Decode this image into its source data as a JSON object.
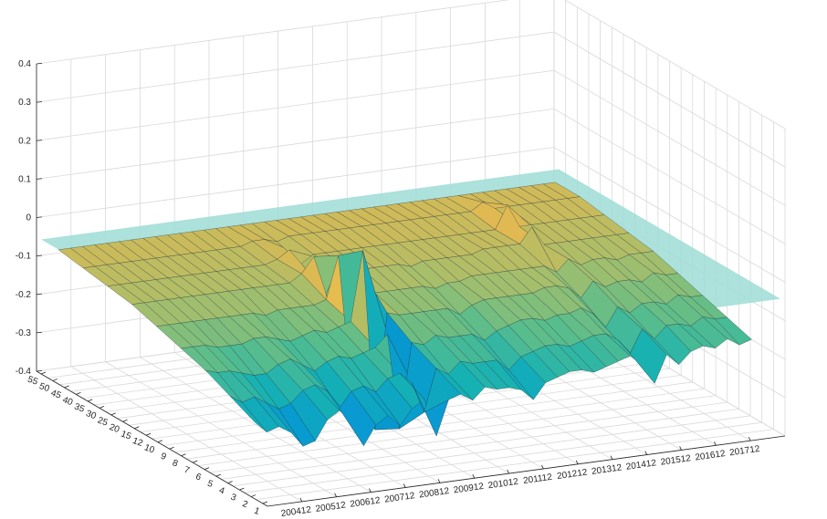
{
  "chart_data": {
    "type": "surface",
    "title": "",
    "xlabel": "",
    "ylabel": "",
    "zlabel": "",
    "zlim": [
      -0.4,
      0.4
    ],
    "z_ticks": [
      "0.4",
      "0.3",
      "0.2",
      "0.1",
      "0",
      "-0.1",
      "-0.2",
      "-0.3",
      "-0.4"
    ],
    "x_ticks": [
      "200412",
      "200512",
      "200612",
      "200712",
      "200812",
      "200912",
      "201012",
      "201112",
      "201212",
      "201312",
      "201412",
      "201512",
      "201612",
      "201712"
    ],
    "y_ticks": [
      "1",
      "2",
      "3",
      "4",
      "5",
      "6",
      "7",
      "8",
      "9",
      "10",
      "12",
      "15",
      "20",
      "25",
      "30",
      "35",
      "40",
      "45",
      "50",
      "55"
    ],
    "grid": true,
    "colormap": "parula",
    "reference_plane": {
      "z": -0.05,
      "color": "#9edcd6"
    },
    "series": [
      {
        "z": [
          -0.22,
          -0.25,
          -0.24,
          -0.26,
          -0.3,
          -0.29,
          -0.24,
          -0.22,
          -0.25,
          -0.32,
          -0.27,
          -0.25,
          -0.28,
          -0.24,
          -0.22,
          -0.32,
          -0.23,
          -0.22,
          -0.24,
          -0.21,
          -0.22,
          -0.22,
          -0.23,
          -0.26,
          -0.22,
          -0.21,
          -0.2,
          -0.2,
          -0.21,
          -0.2,
          -0.19,
          -0.18,
          -0.21,
          -0.26,
          -0.19,
          -0.22,
          -0.19,
          -0.18,
          -0.19,
          -0.17,
          -0.19,
          -0.18
        ]
      },
      {
        "z": [
          -0.19,
          -0.21,
          -0.2,
          -0.22,
          -0.24,
          -0.23,
          -0.2,
          -0.19,
          -0.21,
          -0.26,
          -0.22,
          -0.21,
          -0.23,
          -0.2,
          -0.19,
          -0.22,
          -0.3,
          -0.19,
          -0.21,
          -0.18,
          -0.19,
          -0.19,
          -0.19,
          -0.22,
          -0.19,
          -0.18,
          -0.17,
          -0.17,
          -0.18,
          -0.17,
          -0.16,
          -0.16,
          -0.18,
          -0.22,
          -0.16,
          -0.19,
          -0.16,
          -0.16,
          -0.17,
          -0.15,
          -0.16,
          -0.16
        ]
      },
      {
        "z": [
          -0.16,
          -0.17,
          -0.17,
          -0.18,
          -0.19,
          -0.19,
          -0.17,
          -0.16,
          -0.18,
          -0.2,
          -0.18,
          -0.17,
          -0.18,
          -0.17,
          -0.16,
          -0.13,
          -0.38,
          -0.16,
          -0.17,
          -0.15,
          -0.16,
          -0.16,
          -0.16,
          -0.18,
          -0.16,
          -0.15,
          -0.14,
          -0.14,
          -0.15,
          -0.14,
          -0.14,
          -0.13,
          -0.15,
          -0.19,
          -0.14,
          -0.16,
          -0.14,
          -0.14,
          -0.15,
          -0.13,
          -0.14,
          -0.14
        ]
      },
      {
        "z": [
          -0.14,
          -0.14,
          -0.14,
          -0.15,
          -0.15,
          -0.15,
          -0.14,
          -0.14,
          -0.15,
          -0.16,
          -0.15,
          -0.14,
          -0.15,
          -0.14,
          -0.13,
          0.05,
          -0.42,
          -0.12,
          -0.13,
          -0.13,
          -0.13,
          -0.13,
          -0.13,
          -0.15,
          -0.13,
          -0.12,
          -0.12,
          -0.12,
          -0.12,
          -0.12,
          -0.11,
          -0.11,
          -0.12,
          -0.15,
          -0.11,
          -0.13,
          -0.12,
          -0.12,
          -0.13,
          -0.11,
          -0.12,
          -0.12
        ]
      },
      {
        "z": [
          -0.12,
          -0.12,
          -0.12,
          -0.12,
          -0.12,
          -0.12,
          -0.12,
          -0.12,
          -0.12,
          -0.13,
          -0.12,
          -0.12,
          -0.12,
          -0.12,
          -0.11,
          0.0,
          -0.33,
          -0.05,
          -0.11,
          -0.11,
          -0.11,
          -0.11,
          -0.11,
          -0.12,
          -0.11,
          -0.11,
          -0.1,
          -0.1,
          -0.1,
          -0.1,
          -0.1,
          -0.1,
          -0.1,
          -0.12,
          -0.09,
          -0.11,
          -0.1,
          -0.1,
          -0.11,
          -0.1,
          -0.1,
          -0.1
        ]
      },
      {
        "z": [
          -0.1,
          -0.1,
          -0.1,
          -0.1,
          -0.1,
          -0.1,
          -0.1,
          -0.1,
          -0.1,
          -0.1,
          -0.1,
          -0.1,
          -0.1,
          -0.1,
          -0.08,
          -0.04,
          -0.14,
          -0.08,
          -0.09,
          -0.09,
          -0.09,
          -0.09,
          -0.09,
          -0.1,
          -0.09,
          -0.09,
          -0.09,
          -0.09,
          -0.09,
          -0.08,
          -0.08,
          -0.08,
          -0.08,
          -0.04,
          -0.09,
          -0.09,
          -0.09,
          -0.09,
          -0.09,
          -0.09,
          -0.09,
          -0.09
        ]
      },
      {
        "z": [
          -0.09,
          -0.09,
          -0.09,
          -0.09,
          -0.09,
          -0.09,
          -0.09,
          -0.09,
          -0.09,
          -0.09,
          -0.09,
          -0.09,
          -0.09,
          -0.09,
          -0.08,
          -0.06,
          -0.1,
          -0.08,
          -0.08,
          -0.08,
          -0.08,
          -0.08,
          -0.08,
          -0.08,
          -0.08,
          -0.08,
          -0.08,
          -0.08,
          -0.08,
          -0.08,
          -0.08,
          -0.08,
          -0.08,
          -0.02,
          -0.08,
          -0.08,
          -0.08,
          -0.08,
          -0.08,
          -0.08,
          -0.08,
          -0.08
        ]
      },
      {
        "z": [
          -0.08,
          -0.08,
          -0.08,
          -0.08,
          -0.08,
          -0.08,
          -0.08,
          -0.08,
          -0.08,
          -0.08,
          -0.08,
          -0.08,
          -0.08,
          -0.08,
          -0.07,
          -0.07,
          -0.08,
          -0.07,
          -0.07,
          -0.07,
          -0.07,
          -0.07,
          -0.07,
          -0.07,
          -0.07,
          -0.07,
          -0.07,
          -0.07,
          -0.07,
          -0.07,
          -0.07,
          -0.07,
          -0.07,
          -0.05,
          -0.07,
          -0.07,
          -0.07,
          -0.07,
          -0.07,
          -0.07,
          -0.07,
          -0.07
        ]
      },
      {
        "z": [
          -0.07,
          -0.07,
          -0.07,
          -0.07,
          -0.07,
          -0.07,
          -0.07,
          -0.07,
          -0.07,
          -0.07,
          -0.07,
          -0.07,
          -0.07,
          -0.07,
          -0.07,
          -0.07,
          -0.07,
          -0.07,
          -0.07,
          -0.07,
          -0.07,
          -0.07,
          -0.07,
          -0.07,
          -0.07,
          -0.07,
          -0.07,
          -0.07,
          -0.07,
          -0.07,
          -0.07,
          -0.07,
          -0.07,
          -0.07,
          -0.07,
          -0.07,
          -0.07,
          -0.07,
          -0.07,
          -0.07,
          -0.07,
          -0.07
        ]
      }
    ]
  }
}
